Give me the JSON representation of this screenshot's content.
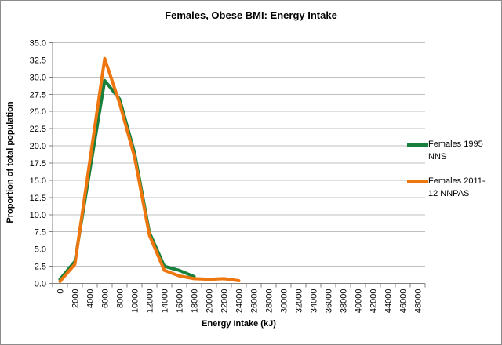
{
  "chart_data": {
    "type": "line",
    "title": "Females, Obese BMI: Energy Intake",
    "xlabel": "Energy Intake (kJ)",
    "ylabel": "Proportion of total population",
    "x_categories": [
      0,
      2000,
      4000,
      6000,
      8000,
      10000,
      12000,
      14000,
      16000,
      18000,
      20000,
      22000,
      24000,
      26000,
      28000,
      30000,
      32000,
      34000,
      36000,
      38000,
      40000,
      42000,
      44000,
      46000,
      48000
    ],
    "ylim": [
      0,
      35
    ],
    "ytick_step": 2.5,
    "grid": "horizontal",
    "legend_position": "right",
    "series": [
      {
        "name": "Females 1995 NNS",
        "color": "#17803d",
        "x": [
          0,
          2000,
          4000,
          6000,
          8000,
          10000,
          12000,
          14000,
          16000,
          18000
        ],
        "values": [
          0.6,
          3.2,
          16.4,
          29.5,
          26.8,
          19.0,
          7.4,
          2.5,
          1.9,
          1.0
        ]
      },
      {
        "name": "Females 2011-12 NNPAS",
        "color": "#ed760e",
        "x": [
          0,
          2000,
          4000,
          6000,
          8000,
          10000,
          12000,
          14000,
          16000,
          18000,
          20000,
          22000,
          24000
        ],
        "values": [
          0.3,
          2.8,
          17.8,
          32.7,
          26.2,
          18.4,
          7.0,
          1.9,
          1.1,
          0.7,
          0.6,
          0.7,
          0.4
        ]
      }
    ]
  },
  "colors": {
    "gridline": "#bfbfbf",
    "axis": "#808080",
    "tick": "#808080",
    "text": "#000000",
    "border": "#8c8c8c",
    "background": "#ffffff"
  }
}
